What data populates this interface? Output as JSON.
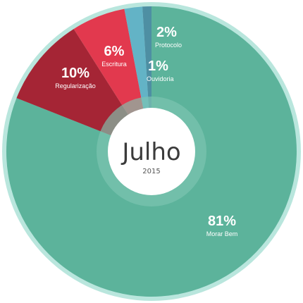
{
  "chart_data": {
    "type": "pie",
    "center_title": "Julho",
    "center_subtitle": "2015",
    "slices": [
      {
        "label": "Morar Bem",
        "value": 81,
        "percent_label": "81%",
        "color": "#5cb39b"
      },
      {
        "label": "Regularização",
        "value": 10,
        "percent_label": "10%",
        "color": "#a52535"
      },
      {
        "label": "Escritura",
        "value": 6,
        "percent_label": "6%",
        "color": "#e2394e"
      },
      {
        "label": "Protocolo",
        "value": 2,
        "percent_label": "2%",
        "color": "#63b3c6"
      },
      {
        "label": "Ouvidoria",
        "value": 1,
        "percent_label": "1%",
        "color": "#4e8fa3"
      }
    ],
    "outer_ring_color": "#b9e6dd",
    "inner_ring_color": "#7ec6b2"
  }
}
